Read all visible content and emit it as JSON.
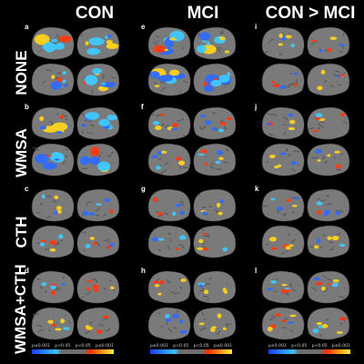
{
  "columns": [
    {
      "title": "CON"
    },
    {
      "title": "MCI"
    },
    {
      "title": "CON > MCI"
    }
  ],
  "rows": [
    {
      "title": "NONE"
    },
    {
      "title": "WMSA"
    },
    {
      "title": "CTH"
    },
    {
      "title": "WMSA+CTH"
    }
  ],
  "panel_letters": [
    "a",
    "e",
    "i",
    "b",
    "f",
    "j",
    "c",
    "g",
    "k",
    "d",
    "h",
    "l"
  ],
  "colorbar": {
    "labels": [
      "p≤0.001",
      "p<0.05",
      "p<0.05",
      "p≤0.001"
    ],
    "colors": [
      "#1a3cff",
      "#34c6ff",
      "#6e6e6e",
      "#ff2a00",
      "#ffef3a"
    ]
  },
  "colors": {
    "background": "#000000",
    "cortex": "#7a7a7a",
    "sulci": "#545454",
    "positive": "#ffd21a",
    "negative": "#2e6bff"
  }
}
